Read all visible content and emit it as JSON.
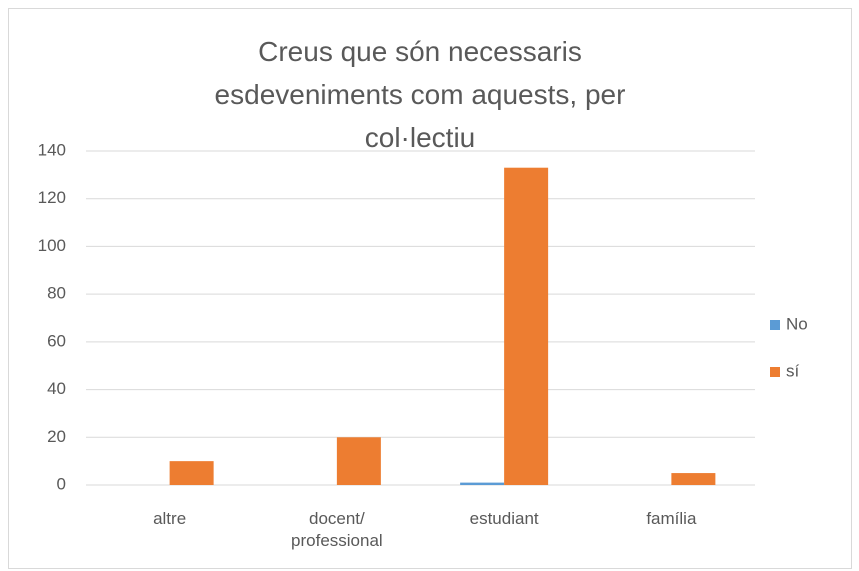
{
  "chart_data": {
    "type": "bar",
    "title": "Creus que són necessaris esdeveniments com aquests, per col·lectiu",
    "categories": [
      "altre",
      "docent/ professional",
      "estudiant",
      "família"
    ],
    "series": [
      {
        "name": "No",
        "color": "#5b9bd5",
        "values": [
          0,
          0,
          1,
          0
        ]
      },
      {
        "name": "sí",
        "color": "#ed7d31",
        "values": [
          10,
          20,
          133,
          5
        ]
      }
    ],
    "ylim": [
      0,
      140
    ],
    "yticks": [
      0,
      20,
      40,
      60,
      80,
      100,
      120,
      140
    ],
    "grid": true,
    "legend": "right"
  }
}
